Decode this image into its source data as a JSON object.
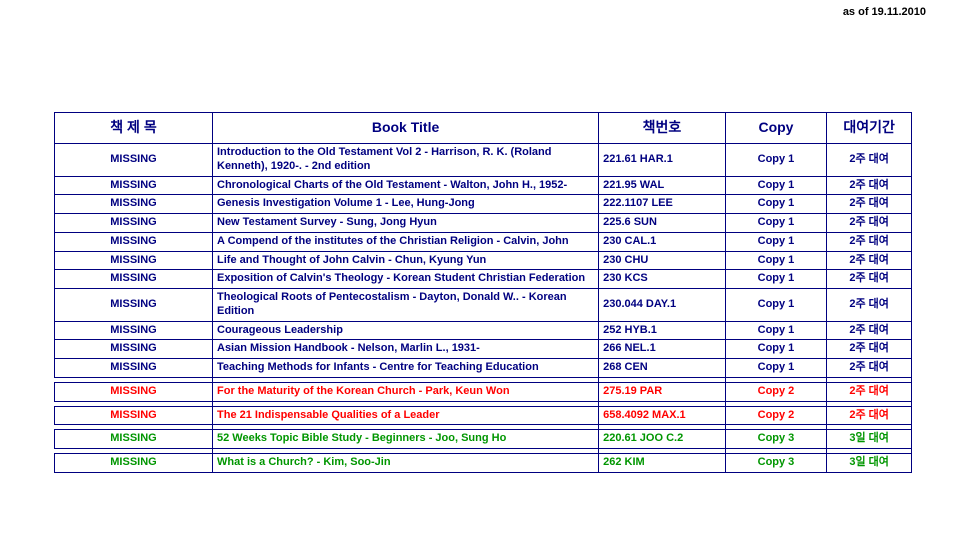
{
  "as_of": "as of  19.11.2010",
  "headers": {
    "ko_title": "책 제 목",
    "book_title": "Book Title",
    "book_no": "책번호",
    "copy": "Copy",
    "period": "대여기간"
  },
  "colors": {
    "navy": "#000080",
    "red": "#ff0000",
    "green": "#009600",
    "black": "#000000"
  },
  "rows": [
    {
      "ko": "MISSING",
      "title": "Introduction to the Old Testament Vol 2 - Harrison, R. K. (Roland Kenneth), 1920-. - 2nd edition",
      "num": "221.61 HAR.1",
      "copy": "Copy 1",
      "per": "2주 대여",
      "group": "navy"
    },
    {
      "ko": "MISSING",
      "title": "Chronological Charts of the Old Testament - Walton, John H., 1952-",
      "num": "221.95 WAL",
      "copy": "Copy 1",
      "per": "2주 대여",
      "group": "navy"
    },
    {
      "ko": "MISSING",
      "title": "Genesis Investigation Volume 1 - Lee, Hung-Jong",
      "num": "222.1107 LEE",
      "copy": "Copy 1",
      "per": "2주 대여",
      "group": "navy"
    },
    {
      "ko": "MISSING",
      "title": "New Testament Survey - Sung, Jong Hyun",
      "num": "225.6 SUN",
      "copy": "Copy 1",
      "per": "2주 대여",
      "group": "navy"
    },
    {
      "ko": "MISSING",
      "title": "A Compend of the institutes of the Christian Religion - Calvin, John",
      "num": "230 CAL.1",
      "copy": "Copy 1",
      "per": "2주 대여",
      "group": "navy"
    },
    {
      "ko": "MISSING",
      "title": "Life and Thought of John Calvin - Chun, Kyung Yun",
      "num": "230 CHU",
      "copy": "Copy 1",
      "per": "2주 대여",
      "group": "navy"
    },
    {
      "ko": "MISSING",
      "title": "Exposition of Calvin's Theology - Korean Student Christian Federation",
      "num": "230 KCS",
      "copy": "Copy 1",
      "per": "2주 대여",
      "group": "navy"
    },
    {
      "ko": "MISSING",
      "title": "Theological Roots of Pentecostalism - Dayton, Donald W.. - Korean Edition",
      "num": "230.044 DAY.1",
      "copy": "Copy 1",
      "per": "2주 대여",
      "group": "navy"
    },
    {
      "ko": "MISSING",
      "title": "Courageous Leadership",
      "num": "252 HYB.1",
      "copy": "Copy 1",
      "per": "2주 대여",
      "group": "navy"
    },
    {
      "ko": "MISSING",
      "title": "Asian Mission Handbook - Nelson, Marlin L., 1931-",
      "num": "266 NEL.1",
      "copy": "Copy 1",
      "per": "2주 대여",
      "group": "navy"
    },
    {
      "ko": "MISSING",
      "title": "Teaching Methods for Infants - Centre for Teaching Education",
      "num": "268 CEN",
      "copy": "Copy 1",
      "per": "2주 대여",
      "group": "navy"
    },
    {
      "ko": "MISSING",
      "title": "For the Maturity of the Korean Church - Park, Keun Won",
      "num": "275.19 PAR",
      "copy": "Copy 2",
      "per": "2주 대여",
      "group": "red",
      "gap": true
    },
    {
      "ko": "MISSING",
      "title": "The 21 Indispensable Qualities of a Leader",
      "num": "658.4092 MAX.1",
      "copy": "Copy 2",
      "per": "2주 대여",
      "group": "red",
      "gap": true
    },
    {
      "ko": "MISSING",
      "title": "52 Weeks Topic Bible Study - Beginners - Joo, Sung Ho",
      "num": "220.61 JOO C.2",
      "copy": "Copy 3",
      "per": "3일 대여",
      "group": "green",
      "gap": true
    },
    {
      "ko": "MISSING",
      "title": "What is a Church? - Kim, Soo-Jin",
      "num": "262 KIM",
      "copy": "Copy 3",
      "per": "3일 대여",
      "group": "green",
      "gap": true
    }
  ]
}
